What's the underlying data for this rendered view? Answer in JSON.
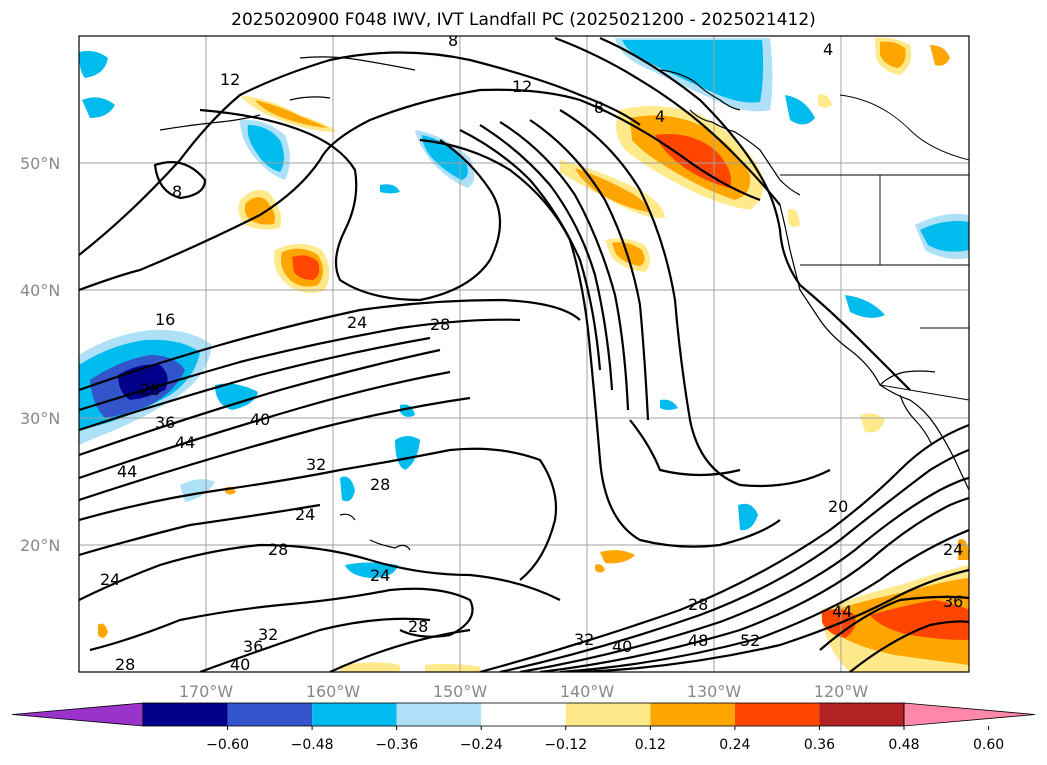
{
  "title": "2025020900 F048 IWV, IVT Landfall PC (2025021200 - 2025021412)",
  "lat_labels": [
    "50°N",
    "40°N",
    "30°N",
    "20°N"
  ],
  "lon_labels": [
    "170°W",
    "160°W",
    "150°W",
    "140°W",
    "130°W",
    "120°W"
  ],
  "contour_labels": [
    "12",
    "12",
    "8",
    "8",
    "4",
    "4",
    "8",
    "16",
    "24",
    "28",
    "36",
    "44",
    "44",
    "40",
    "32",
    "28",
    "24",
    "28",
    "24",
    "24",
    "28",
    "32",
    "36",
    "40",
    "28",
    "32",
    "40",
    "48",
    "52",
    "28",
    "20",
    "24",
    "36",
    "44",
    "28"
  ],
  "colorbar": {
    "ticks": [
      "−0.60",
      "−0.48",
      "−0.36",
      "−0.24",
      "−0.12",
      "0.12",
      "0.24",
      "0.36",
      "0.48",
      "0.60"
    ],
    "colors": [
      "#9933cc",
      "#00008b",
      "#3355cc",
      "#00bbee",
      "#aee0f7",
      "#ffffff",
      "#ffe98a",
      "#ffa500",
      "#ff4500",
      "#b22222",
      "#ff88aa"
    ]
  }
}
